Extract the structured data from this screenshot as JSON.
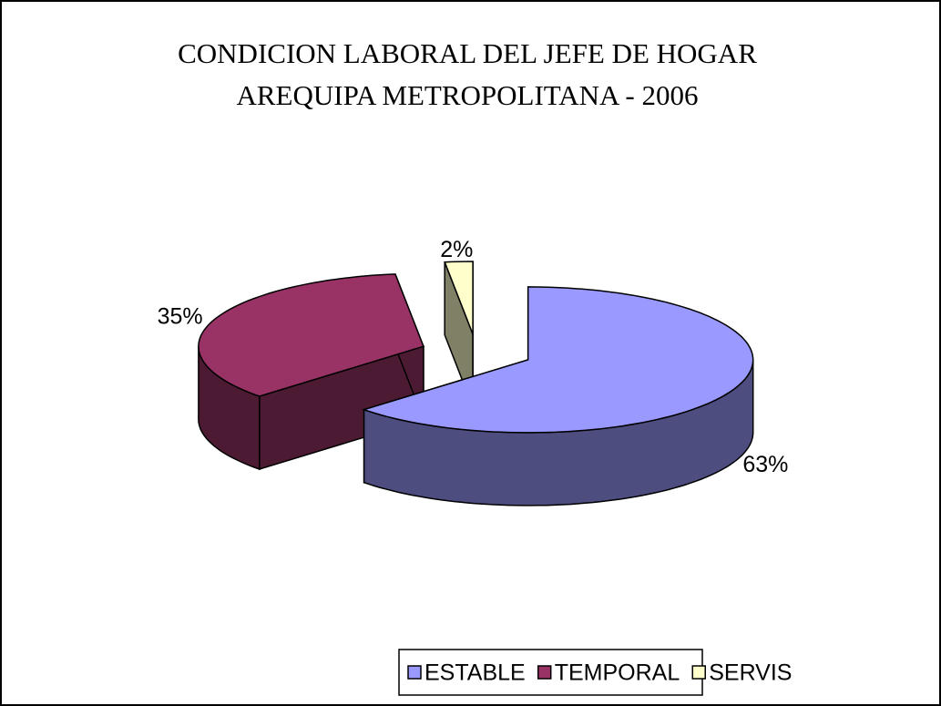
{
  "chart_data": {
    "type": "pie3d",
    "title": [
      "CONDICION LABORAL DEL JEFE DE HOGAR",
      "AREQUIPA METROPOLITANA  - 2006"
    ],
    "categories": [
      "ESTABLE",
      "TEMPORAL",
      "SERVIS"
    ],
    "values": [
      63,
      35,
      2
    ],
    "value_labels": [
      "63%",
      "35%",
      "2%"
    ],
    "colors": [
      "#9999ff",
      "#993366",
      "#ffffcc"
    ],
    "legend": "bottom"
  }
}
